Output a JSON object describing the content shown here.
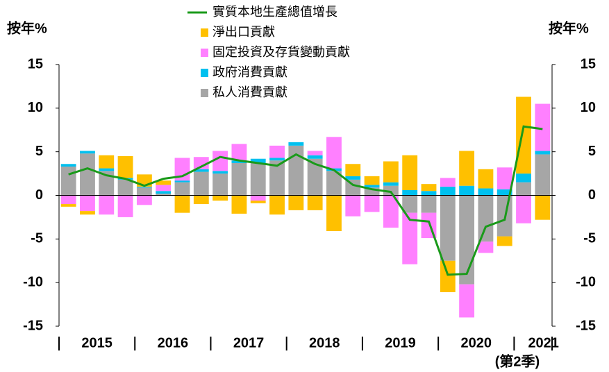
{
  "chart_data": {
    "type": "bar",
    "y_label": "按年%",
    "y2_label": "按年%",
    "categories": [
      null,
      null,
      null,
      null,
      null,
      null,
      null,
      null,
      null,
      null,
      null,
      null,
      null,
      null,
      null,
      null,
      null,
      null,
      null,
      null,
      null,
      null,
      null,
      null,
      null,
      null
    ],
    "year_labels": [
      "2015",
      "2016",
      "2017",
      "2018",
      "2019",
      "2020",
      "2021"
    ],
    "x_note": "(第2季)",
    "ylim": [
      -15,
      15
    ],
    "yticks": [
      -15,
      -10,
      -5,
      0,
      5,
      10,
      15
    ],
    "y2lim": [
      -15,
      15
    ],
    "y2ticks": [
      -15,
      -10,
      -5,
      0,
      5,
      10,
      15
    ],
    "series": [
      {
        "name": "實質本地生產總值增長",
        "type": "line",
        "color": "#1a9a1a",
        "values": [
          2.4,
          3.1,
          2.3,
          1.9,
          1.1,
          1.9,
          2.2,
          3.3,
          4.4,
          4.0,
          3.7,
          3.4,
          4.7,
          3.6,
          2.9,
          1.2,
          0.7,
          0.4,
          -2.8,
          -3.0,
          -9.1,
          -9.0,
          -3.6,
          -2.8,
          7.9,
          7.6
        ]
      },
      {
        "name": "淨出口貢獻",
        "type": "bar",
        "color": "#ffc000",
        "values": [
          -0.3,
          -0.4,
          1.5,
          2.5,
          1.4,
          0.5,
          -2.0,
          -1.0,
          -0.6,
          -2.1,
          -0.3,
          -2.2,
          -1.7,
          -1.7,
          -4.1,
          1.4,
          1.0,
          2.4,
          4.0,
          0.8,
          -3.6,
          4.0,
          2.2,
          -1.1,
          8.8,
          -2.8
        ]
      },
      {
        "name": "固定投資及存貨變動貢獻",
        "type": "bar",
        "color": "#ff80ff",
        "values": [
          -1.0,
          -1.8,
          -2.2,
          -2.5,
          -1.1,
          0.7,
          2.6,
          1.4,
          2.3,
          1.9,
          -0.6,
          1.4,
          0,
          0.5,
          3.6,
          -2.4,
          -1.9,
          -3.7,
          -5.9,
          -2.9,
          1.0,
          -3.8,
          -1.3,
          2.5,
          -3.2,
          5.4
        ]
      },
      {
        "name": "政府消費貢獻",
        "type": "bar",
        "color": "#00c0ef",
        "values": [
          0.3,
          0.3,
          0.3,
          0.2,
          0.1,
          0.3,
          0.2,
          0.3,
          0.3,
          0.3,
          0.5,
          0.3,
          0.4,
          0.4,
          0.3,
          0.4,
          0.3,
          0.4,
          0.6,
          0.5,
          1.0,
          1.1,
          0.8,
          0.7,
          1.0,
          0.4
        ]
      },
      {
        "name": "私人消費貢獻",
        "type": "bar",
        "color": "#a6a6a6",
        "values": [
          3.3,
          4.8,
          2.8,
          1.8,
          0.9,
          0.2,
          1.5,
          2.7,
          2.5,
          3.7,
          3.7,
          4.0,
          5.7,
          4.2,
          2.8,
          1.8,
          0.9,
          1.1,
          -2.0,
          -2.0,
          -7.5,
          -10.2,
          -5.3,
          -4.7,
          1.5,
          4.7
        ]
      }
    ]
  }
}
